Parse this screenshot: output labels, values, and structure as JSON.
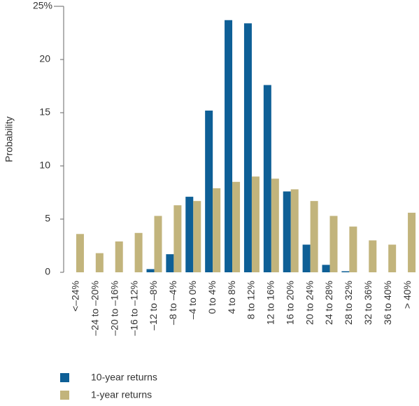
{
  "chart_data": {
    "type": "bar",
    "y_label": "Probability",
    "categories": [
      "<–24%",
      "–24 to –20%",
      "–20 to –16%",
      "–16 to –12%",
      "–12 to –8%",
      "–8 to –4%",
      "–4 to 0%",
      "0 to 4%",
      "4 to 8%",
      "8 to 12%",
      "12 to 16%",
      "16 to 20%",
      "20 to 24%",
      "24 to 28%",
      "28 to 32%",
      "32 to 36%",
      "36 to 40%",
      "> 40%"
    ],
    "series": [
      {
        "name": "10-year returns",
        "color": "#0e5f96",
        "values": [
          0,
          0,
          0,
          0,
          0.3,
          1.7,
          7.1,
          15.2,
          23.7,
          23.4,
          17.6,
          7.6,
          2.6,
          0.7,
          0.1,
          0,
          0,
          0
        ]
      },
      {
        "name": "1-year returns",
        "color": "#c2b47c",
        "values": [
          3.6,
          1.8,
          2.9,
          3.7,
          5.3,
          6.3,
          6.7,
          7.9,
          8.5,
          9.0,
          8.8,
          7.8,
          6.7,
          5.3,
          4.3,
          3.0,
          2.6,
          5.6
        ]
      }
    ],
    "ylim": [
      0,
      25
    ],
    "yticks": [
      0,
      5,
      10,
      15,
      20,
      {
        "value": 25,
        "label": "25%"
      }
    ]
  }
}
